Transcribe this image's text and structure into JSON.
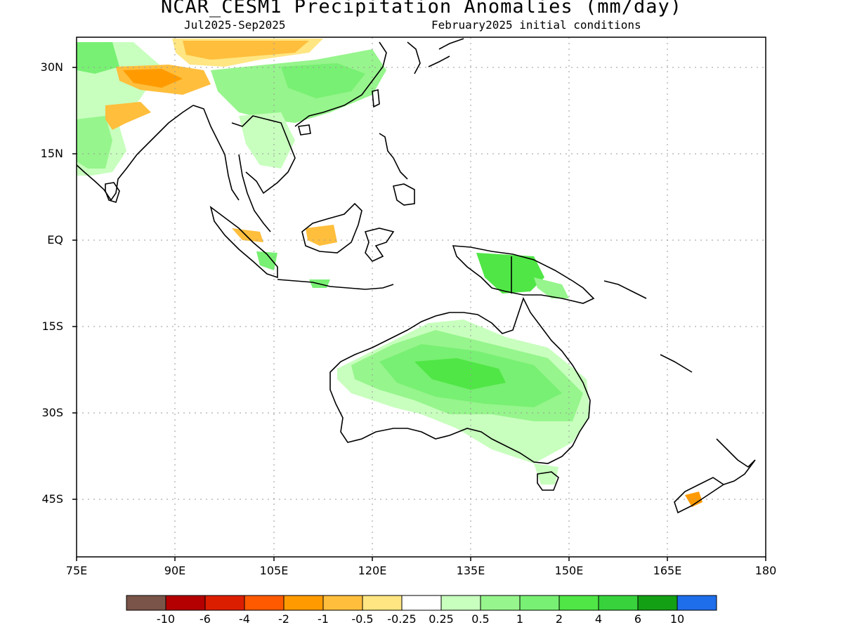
{
  "header": {
    "title": "NCAR_CESM1 Precipitation Anomalies (mm/day)",
    "period": "Jul2025-Sep2025",
    "init": "February2025 initial conditions"
  },
  "axes": {
    "lat_labels": [
      "30N",
      "15N",
      "EQ",
      "15S",
      "30S",
      "45S"
    ],
    "lon_labels": [
      "75E",
      "90E",
      "105E",
      "120E",
      "135E",
      "150E",
      "165E",
      "180"
    ]
  },
  "colorbar": {
    "labels": [
      "-10",
      "-6",
      "-4",
      "-2",
      "-1",
      "-0.5",
      "-0.25",
      "0.25",
      "0.5",
      "1",
      "2",
      "4",
      "6",
      "10"
    ],
    "colors": [
      "#7a5448",
      "#b40000",
      "#dc1e00",
      "#ff5a00",
      "#ff9b00",
      "#ffbe3c",
      "#ffe682",
      "#ffffff",
      "#c8ffbe",
      "#96f58c",
      "#78f073",
      "#50e646",
      "#37d23c",
      "#14a014",
      "#1e6eeb"
    ]
  },
  "palette": {
    "coast": "#000000",
    "grid": "#999999",
    "light_green": "#c8ffbe",
    "mid_green": "#96f58c",
    "green": "#78f073",
    "bright_green": "#50e646",
    "yellow": "#ffe682",
    "light_orange": "#ffbe3c",
    "orange": "#ff9b00",
    "dark_orange": "#ff5a00"
  }
}
